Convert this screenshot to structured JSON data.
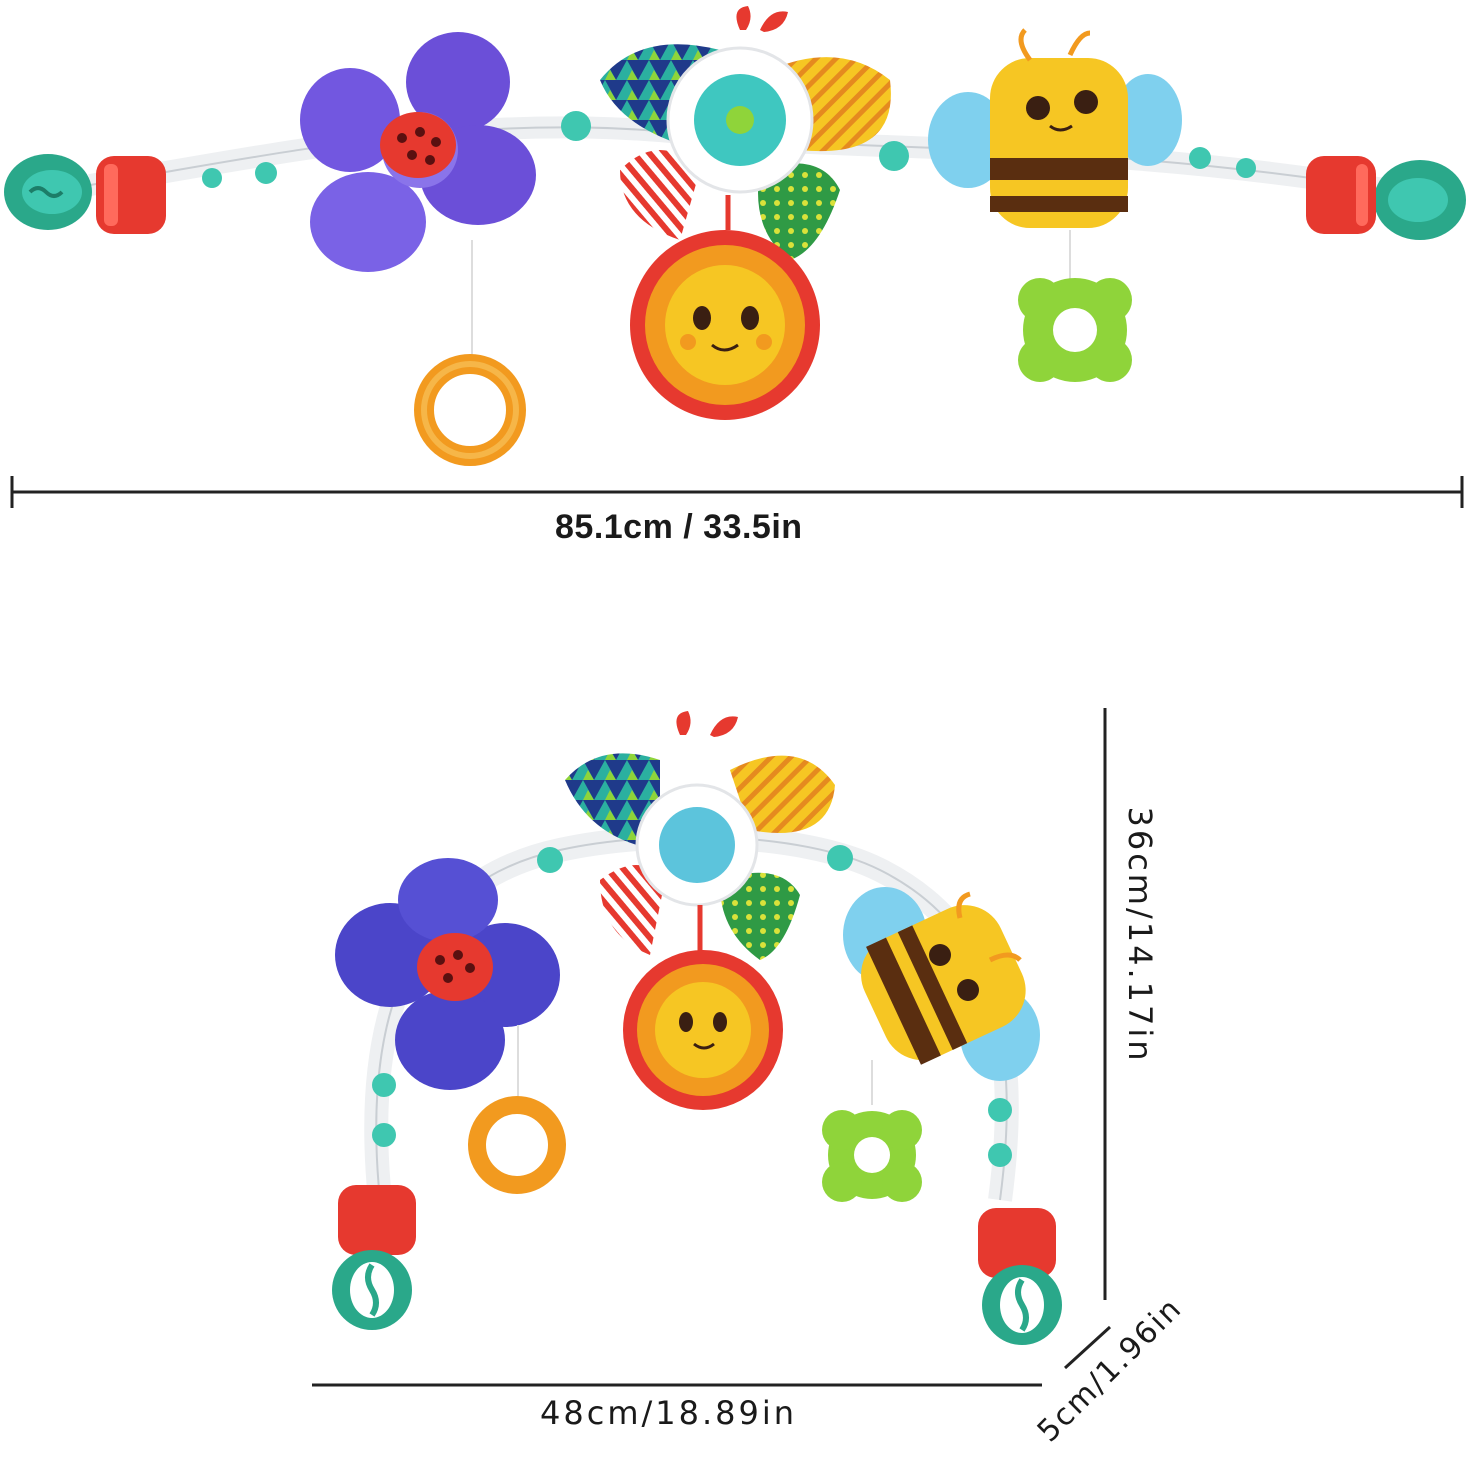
{
  "dimensions": {
    "length_extended": "85.1cm / 33.5in",
    "width_arched": "48cm/18.89in",
    "height_arched": "36cm/14.17in",
    "depth": "5cm/1.96in"
  },
  "colors": {
    "purple": "#6b4fd8",
    "blue_purple": "#4b45c9",
    "red": "#e6392f",
    "yellow": "#f6c623",
    "orange": "#f29a1f",
    "teal": "#2aa88a",
    "mint": "#3fc7b0",
    "lime": "#8fd43a",
    "sky": "#7fd0ee",
    "green_cloth": "#3aa34a",
    "dark": "#222222"
  }
}
